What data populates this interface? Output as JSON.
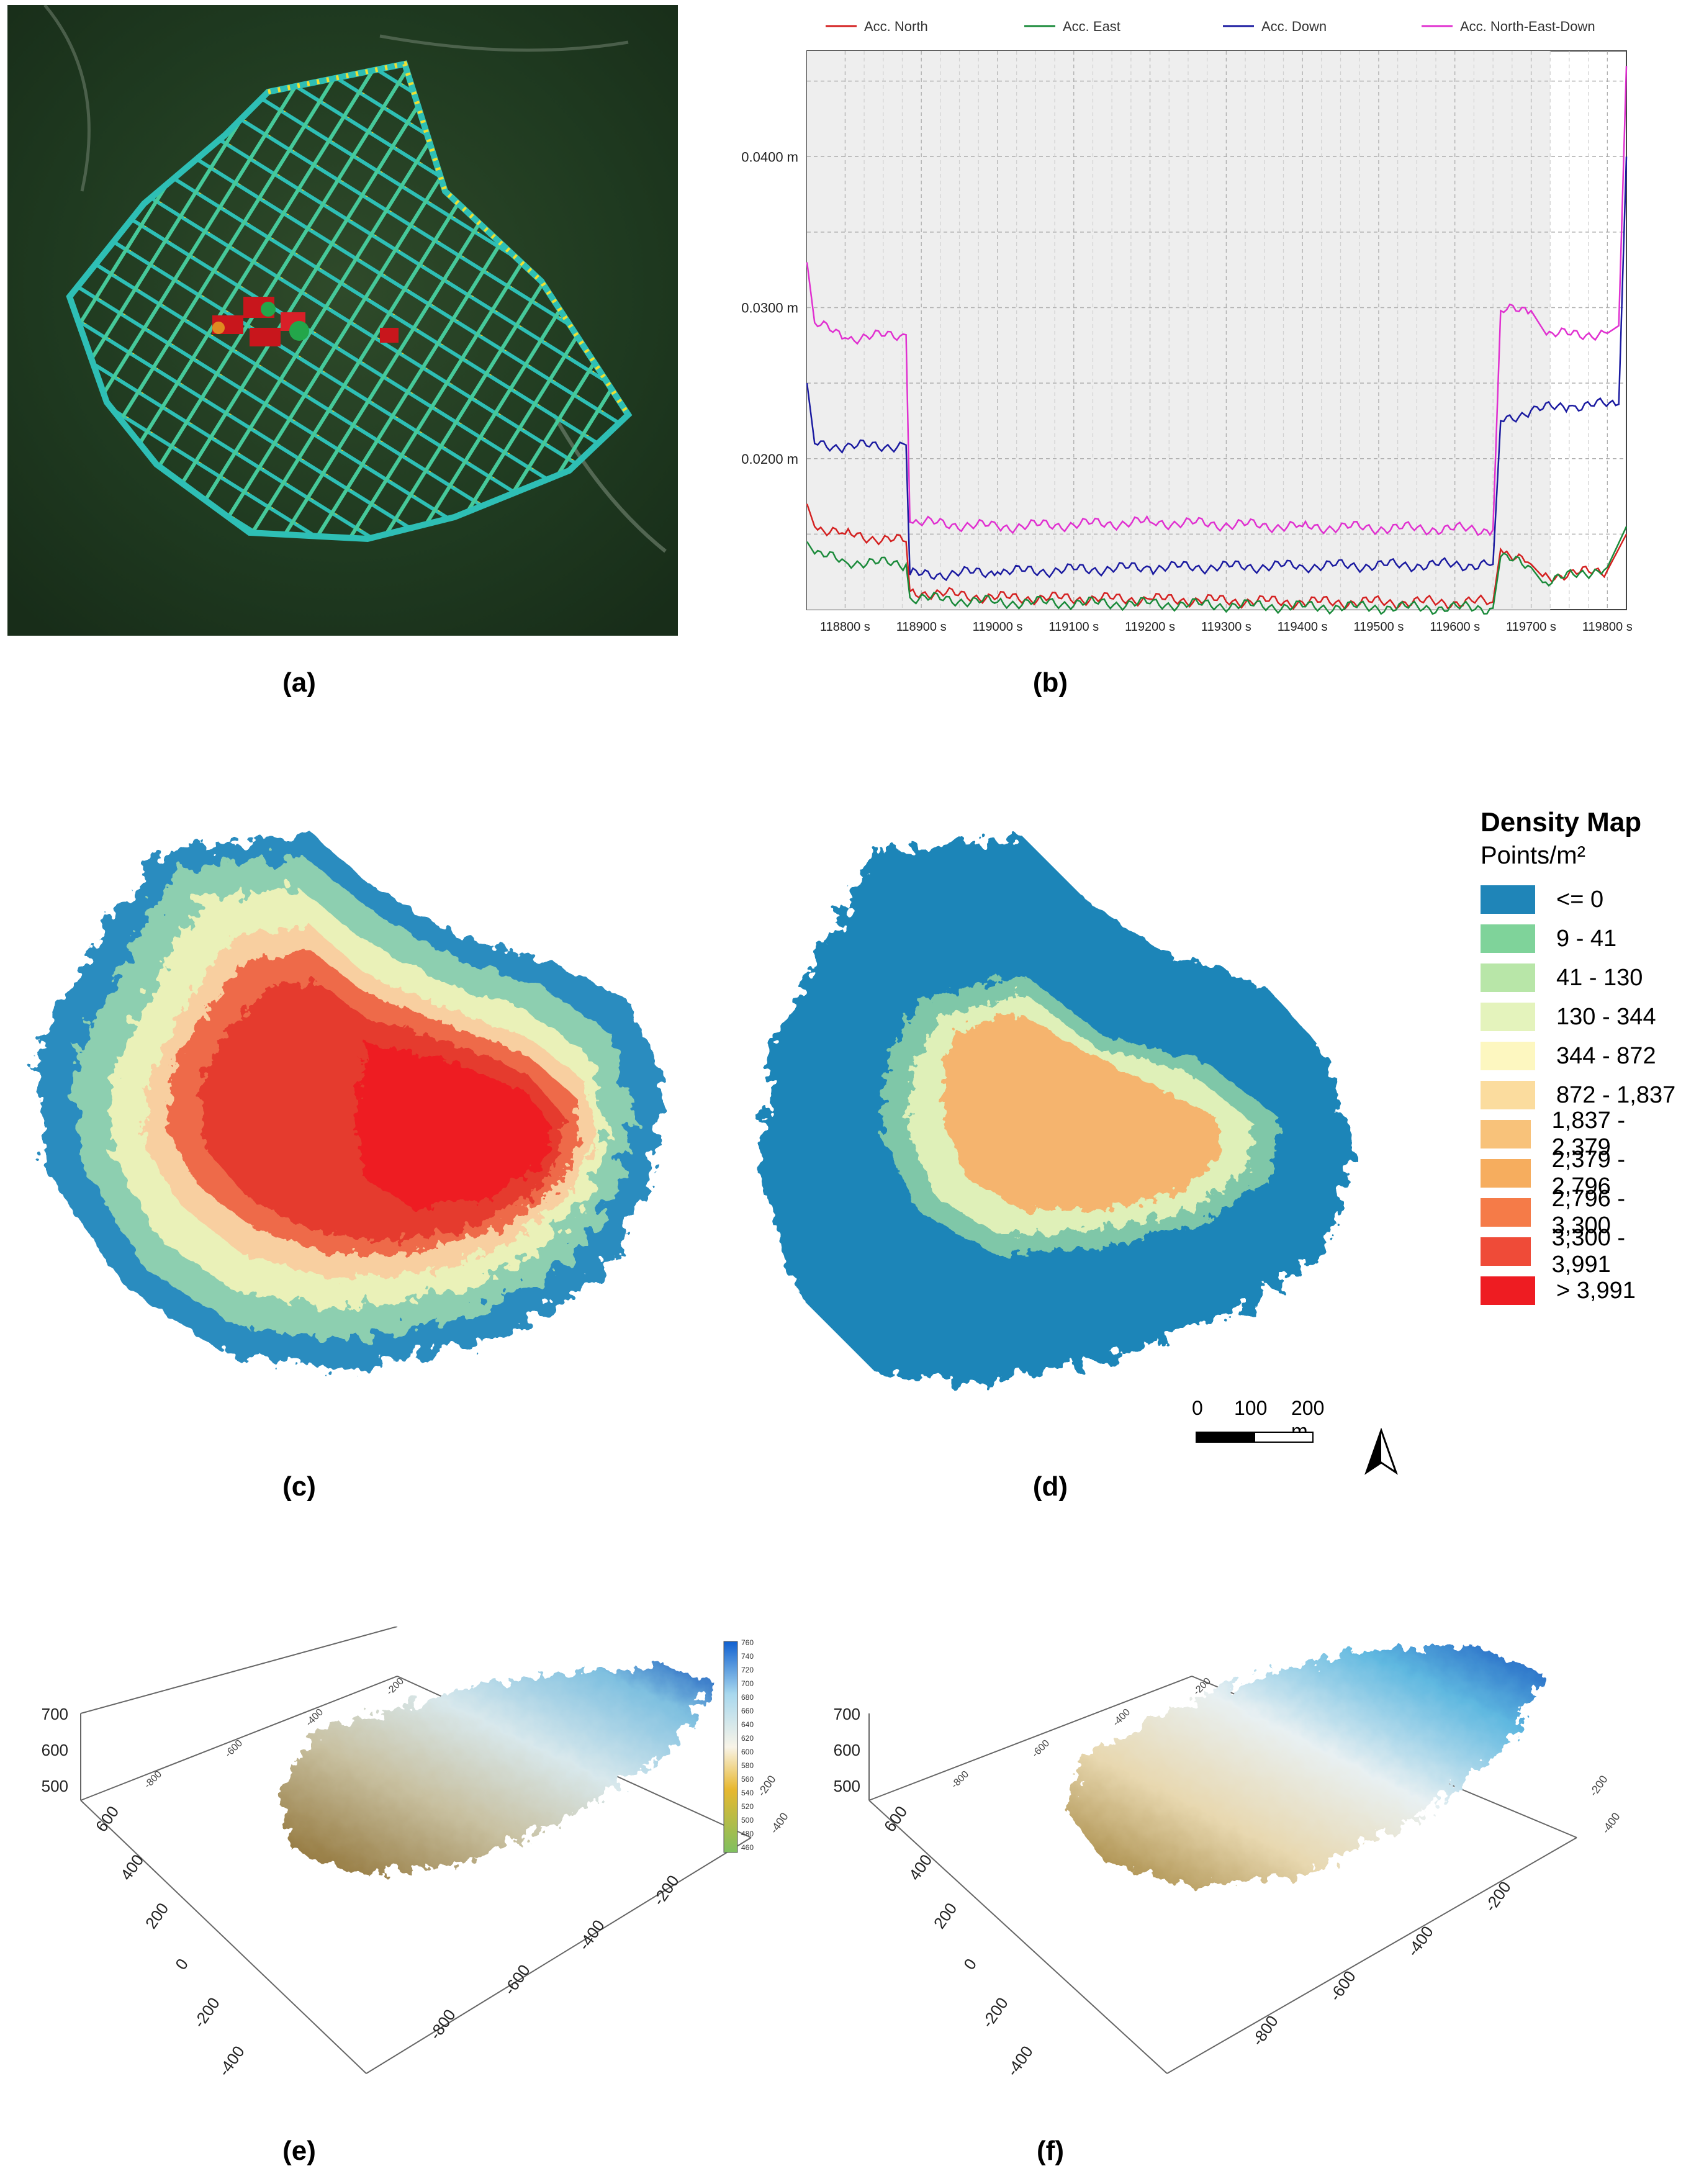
{
  "captions": [
    "(a)",
    "(b)",
    "(c)",
    "(d)",
    "(e)",
    "(f)"
  ],
  "panel_b": {
    "legend": [
      {
        "label": "Acc. North",
        "color": "#d42020"
      },
      {
        "label": "Acc. East",
        "color": "#1a8a3a"
      },
      {
        "label": "Acc. Down",
        "color": "#1a1aa0"
      },
      {
        "label": "Acc. North-East-Down",
        "color": "#e030d0"
      }
    ],
    "y_ticks": [
      "0.0400 m",
      "0.0300 m",
      "0.0200 m"
    ],
    "x_ticks": [
      "118800 s",
      "118900 s",
      "119000 s",
      "119100 s",
      "119200 s",
      "119300 s",
      "119400 s",
      "119500 s",
      "119600 s",
      "119700 s",
      "119800 s"
    ]
  },
  "chart_data": {
    "type": "line",
    "ylim": [
      0.01,
      0.047
    ],
    "xlim": [
      118750,
      119825
    ],
    "series": [
      {
        "name": "Acc. North-East-Down",
        "color": "#e030d0",
        "x": [
          118750,
          118760,
          118800,
          118880,
          118885,
          119000,
          119200,
          119400,
          119650,
          119660,
          119700,
          119720,
          119800,
          119815,
          119825
        ],
        "values": [
          0.033,
          0.029,
          0.028,
          0.0282,
          0.0158,
          0.0155,
          0.0158,
          0.0155,
          0.0153,
          0.0298,
          0.0298,
          0.0282,
          0.0283,
          0.0288,
          0.046
        ]
      },
      {
        "name": "Acc. Down",
        "color": "#1a1aa0",
        "x": [
          118750,
          118760,
          118800,
          118880,
          118885,
          119000,
          119200,
          119400,
          119650,
          119660,
          119700,
          119750,
          119815,
          119825
        ],
        "values": [
          0.025,
          0.021,
          0.0208,
          0.0209,
          0.0123,
          0.0125,
          0.0128,
          0.0129,
          0.013,
          0.0225,
          0.0232,
          0.0235,
          0.0236,
          0.04
        ]
      },
      {
        "name": "Acc. North",
        "color": "#d42020",
        "x": [
          118750,
          118760,
          118800,
          118880,
          118885,
          119000,
          119200,
          119400,
          119650,
          119660,
          119700,
          119715,
          119800,
          119825
        ],
        "values": [
          0.017,
          0.0155,
          0.015,
          0.0145,
          0.0112,
          0.0108,
          0.0107,
          0.0105,
          0.0105,
          0.014,
          0.013,
          0.0122,
          0.0126,
          0.015
        ]
      },
      {
        "name": "Acc. East",
        "color": "#1a8a3a",
        "x": [
          118750,
          118760,
          118800,
          118880,
          118885,
          119000,
          119200,
          119400,
          119650,
          119660,
          119700,
          119715,
          119800,
          119825
        ],
        "values": [
          0.0145,
          0.0137,
          0.0132,
          0.013,
          0.0108,
          0.0105,
          0.0104,
          0.0102,
          0.0101,
          0.0135,
          0.0128,
          0.0118,
          0.0128,
          0.0155
        ]
      }
    ]
  },
  "density_legend": {
    "title": "Density Map",
    "subtitle": "Points/m²",
    "classes": [
      {
        "label": "<= 0",
        "color": "#1f85b8"
      },
      {
        "label": "9 - 41",
        "color": "#7fd39a"
      },
      {
        "label": "41 - 130",
        "color": "#b8e6a8"
      },
      {
        "label": "130 - 344",
        "color": "#e4f3bc"
      },
      {
        "label": "344 - 872",
        "color": "#fdf7c0"
      },
      {
        "label": "872 - 1,837",
        "color": "#fbdc9e"
      },
      {
        "label": "1,837 - 2,379",
        "color": "#f8c27a"
      },
      {
        "label": "2,379 - 2,796",
        "color": "#f6ad5e"
      },
      {
        "label": "2,796 - 3,300",
        "color": "#f57b48"
      },
      {
        "label": "3,300 - 3,991",
        "color": "#ef4b38"
      },
      {
        "label": "> 3,991",
        "color": "#ee1c22"
      }
    ]
  },
  "scalebar": {
    "labels": [
      "0",
      "100",
      "200 m"
    ]
  },
  "panel_e": {
    "z_ticks": [
      "700",
      "600",
      "500"
    ],
    "y_ticks": [
      "600",
      "400",
      "200",
      "0",
      "-200",
      "-400"
    ],
    "x_ticks": [
      "-200",
      "-400",
      "-600",
      "-800"
    ],
    "top_ticks": [
      "-800",
      "-600",
      "-400",
      "-200"
    ],
    "right_ticks": [
      "-400",
      "-200"
    ],
    "colorbar_ticks": [
      "760",
      "740",
      "720",
      "700",
      "680",
      "660",
      "640",
      "620",
      "600",
      "580",
      "560",
      "540",
      "520",
      "500",
      "480",
      "460"
    ]
  },
  "panel_f": {
    "z_ticks": [
      "700",
      "600",
      "500"
    ],
    "y_ticks": [
      "600",
      "400",
      "200",
      "0",
      "-200",
      "-400"
    ],
    "x_ticks": [
      "-200",
      "-400",
      "-600",
      "-800"
    ],
    "top_ticks": [
      "-800",
      "-600",
      "-400",
      "-200"
    ],
    "right_ticks": [
      "-400",
      "-200"
    ]
  }
}
